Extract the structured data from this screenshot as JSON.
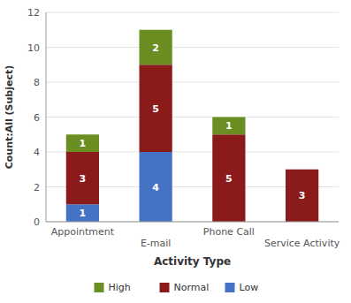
{
  "chart_data": {
    "type": "bar",
    "stacked": true,
    "categories": [
      "Appointment",
      "E-mail",
      "Phone Call",
      "Service Activity"
    ],
    "series": [
      {
        "name": "Low",
        "color": "#4472C4",
        "values": [
          1,
          4,
          0,
          0
        ]
      },
      {
        "name": "Normal",
        "color": "#8B1A1A",
        "values": [
          3,
          5,
          5,
          3
        ]
      },
      {
        "name": "High",
        "color": "#6B8E23",
        "values": [
          1,
          2,
          1,
          0
        ]
      }
    ],
    "xlabel": "Activity Type",
    "ylabel": "Count:All (Subject)",
    "ylim": [
      0,
      12
    ],
    "yticks": [
      0,
      2,
      4,
      6,
      8,
      10,
      12
    ],
    "grid": true,
    "legend": "bottom",
    "data_labels": true
  }
}
